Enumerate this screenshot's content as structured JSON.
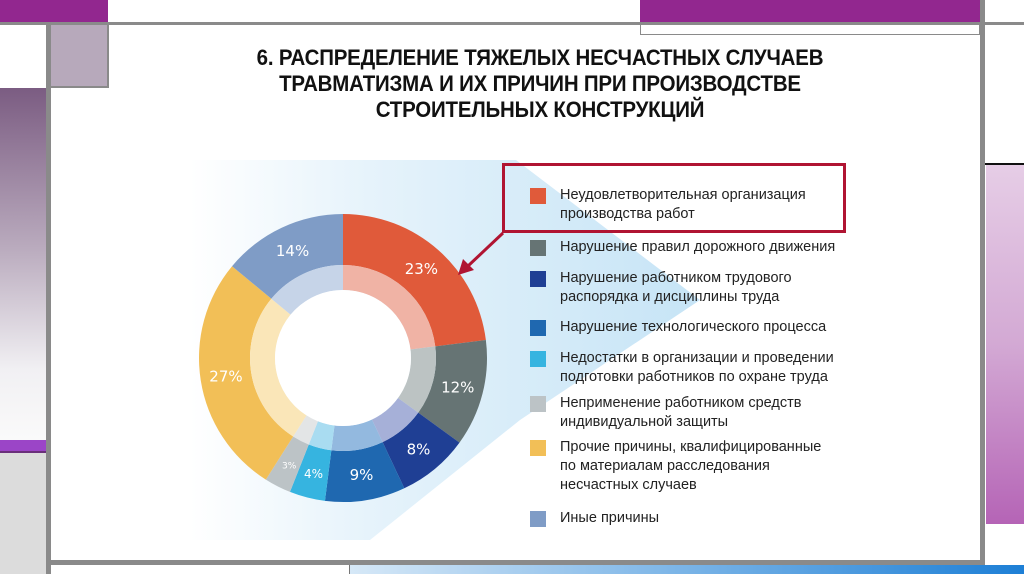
{
  "title": {
    "line1": "6. РАСПРЕДЕЛЕНИЕ ТЯЖЕЛЫХ НЕСЧАСТНЫХ СЛУЧАЕВ",
    "line2": "ТРАВМАТИЗМА И ИХ ПРИЧИН ПРИ ПРОИЗВОДСТВЕ",
    "line3": "СТРОИТЕЛЬНЫХ КОНСТРУКЦИЙ"
  },
  "colors": {
    "frame_purple": "#92278f",
    "frame_gray": "#8a8a8a",
    "highlight_border": "#b01432",
    "background_shape": "#cfe8f7"
  },
  "chart_data": {
    "type": "pie",
    "subtype": "donut",
    "title": "6. РАСПРЕДЕЛЕНИЕ ТЯЖЕЛЫХ НЕСЧАСТНЫХ СЛУЧАЕВ ТРАВМАТИЗМА И ИХ ПРИЧИН ПРИ ПРОИЗВОДСТВЕ СТРОИТЕЛЬНЫХ КОНСТРУКЦИЙ",
    "start_angle": "12 o'clock, clockwise",
    "legend_position": "right",
    "highlighted_category": "Неудовлетворительная организация производства работ",
    "categories": [
      "Неудовлетворительная организация производства работ",
      "Нарушение правил дорожного движения",
      "Нарушение работником трудового распорядка и дисциплины труда",
      "Нарушение технологического процесса",
      "Недостатки в организации и проведении подготовки работников по охране труда",
      "Неприменение работником средств индивидуальной защиты",
      "Прочие причины, квалифицированные по материалам расследования несчастных случаев",
      "Иные причины"
    ],
    "values": [
      23,
      12,
      8,
      9,
      4,
      3,
      27,
      14
    ],
    "labels": [
      "23%",
      "12%",
      "8%",
      "9%",
      "4%",
      "3%",
      "27%",
      "14%"
    ],
    "colors": [
      "#e05a3a",
      "#667474",
      "#1f3f94",
      "#1f68b0",
      "#36b4e0",
      "#bcc3c6",
      "#f2bf57",
      "#7f9cc6"
    ],
    "inner_colors": [
      "#f0b3a5",
      "#bcc3c3",
      "#a6b0d8",
      "#93b9df",
      "#a9dcf1",
      "#e3e5e6",
      "#fae6b8",
      "#c6d4e8"
    ]
  },
  "legend": {
    "items": [
      {
        "label": "Неудовлетворительная организация\nпроизводства работ",
        "color": "#e05a3a"
      },
      {
        "label": "Нарушение правил дорожного движения",
        "color": "#667474"
      },
      {
        "label": "Нарушение работником трудового\nраспорядка и  дисциплины труда",
        "color": "#1f3f94"
      },
      {
        "label": "Нарушение технологического процесса",
        "color": "#1f68b0"
      },
      {
        "label": "Недостатки в организации и проведении\nподготовки работников по охране труда",
        "color": "#36b4e0"
      },
      {
        "label": "Неприменение работником средств\nиндивидуальной защиты",
        "color": "#bcc3c6"
      },
      {
        "label": "Прочие причины, квалифицированные\nпо материалам расследования\nнесчастных случаев",
        "color": "#f2bf57"
      },
      {
        "label": "Иные причины",
        "color": "#7f9cc6"
      }
    ]
  }
}
